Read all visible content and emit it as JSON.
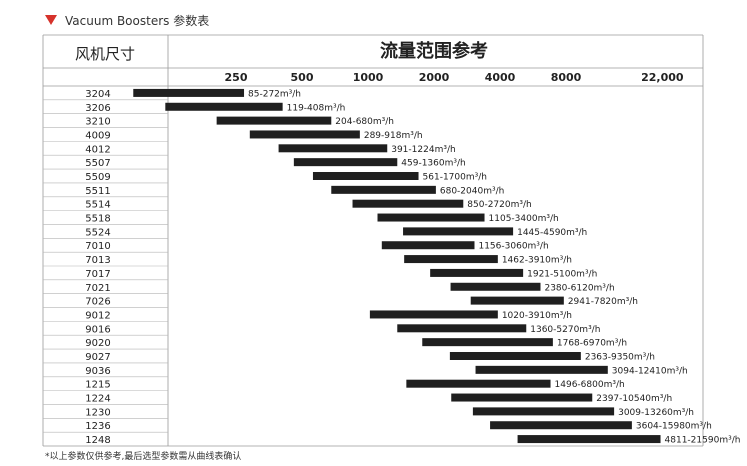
{
  "heading": {
    "marker": "triangle-down-icon",
    "marker_color": "#d6322b",
    "title": "Vacuum Boosters 参数表"
  },
  "footnote": "*以上参数仅供参考,最后选型参数需从曲线表确认",
  "chart_data": {
    "type": "bar",
    "orientation": "horizontal-range",
    "title": "流量范围参考",
    "category_header": "风机尺寸",
    "x_scale": "log",
    "x_ticks": [
      {
        "label": "250",
        "value": 250
      },
      {
        "label": "500",
        "value": 500
      },
      {
        "label": "1000",
        "value": 1000
      },
      {
        "label": "2000",
        "value": 2000
      },
      {
        "label": "4000",
        "value": 4000
      },
      {
        "label": "8000",
        "value": 8000
      },
      {
        "label": "22,000",
        "value": 22000
      }
    ],
    "bar_color": "#1f1f1f",
    "rows": [
      {
        "size": "3204",
        "min": 85,
        "max": 272,
        "label": "85-272m³/h"
      },
      {
        "size": "3206",
        "min": 119,
        "max": 408,
        "label": "119-408m³/h"
      },
      {
        "size": "3210",
        "min": 204,
        "max": 680,
        "label": "204-680m³/h"
      },
      {
        "size": "4009",
        "min": 289,
        "max": 918,
        "label": "289-918m³/h"
      },
      {
        "size": "4012",
        "min": 391,
        "max": 1224,
        "label": "391-1224m³/h"
      },
      {
        "size": "5507",
        "min": 459,
        "max": 1360,
        "label": "459-1360m³/h"
      },
      {
        "size": "5509",
        "min": 561,
        "max": 1700,
        "label": "561-1700m³/h"
      },
      {
        "size": "5511",
        "min": 680,
        "max": 2040,
        "label": "680-2040m³/h"
      },
      {
        "size": "5514",
        "min": 850,
        "max": 2720,
        "label": "850-2720m³/h"
      },
      {
        "size": "5518",
        "min": 1105,
        "max": 3400,
        "label": "1105-3400m³/h"
      },
      {
        "size": "5524",
        "min": 1445,
        "max": 4590,
        "label": "1445-4590m³/h"
      },
      {
        "size": "7010",
        "min": 1156,
        "max": 3060,
        "label": "1156-3060m³/h"
      },
      {
        "size": "7013",
        "min": 1462,
        "max": 3910,
        "label": "1462-3910m³/h"
      },
      {
        "size": "7017",
        "min": 1921,
        "max": 5100,
        "label": "1921-5100m³/h"
      },
      {
        "size": "7021",
        "min": 2380,
        "max": 6120,
        "label": "2380-6120m³/h"
      },
      {
        "size": "7026",
        "min": 2941,
        "max": 7820,
        "label": "2941-7820m³/h"
      },
      {
        "size": "9012",
        "min": 1020,
        "max": 3910,
        "label": "1020-3910m³/h"
      },
      {
        "size": "9016",
        "min": 1360,
        "max": 5270,
        "label": "1360-5270m³/h"
      },
      {
        "size": "9020",
        "min": 1768,
        "max": 6970,
        "label": "1768-6970m³/h"
      },
      {
        "size": "9027",
        "min": 2363,
        "max": 9350,
        "label": "2363-9350m³/h"
      },
      {
        "size": "9036",
        "min": 3094,
        "max": 12410,
        "label": "3094-12410m³/h"
      },
      {
        "size": "1215",
        "min": 1496,
        "max": 6800,
        "label": "1496-6800m³/h"
      },
      {
        "size": "1224",
        "min": 2397,
        "max": 10540,
        "label": "2397-10540m³/h"
      },
      {
        "size": "1230",
        "min": 3009,
        "max": 13260,
        "label": "3009-13260m³/h"
      },
      {
        "size": "1236",
        "min": 3604,
        "max": 15980,
        "label": "3604-15980m³/h"
      },
      {
        "size": "1248",
        "min": 4811,
        "max": 21590,
        "label": "4811-21590m³/h"
      }
    ]
  }
}
